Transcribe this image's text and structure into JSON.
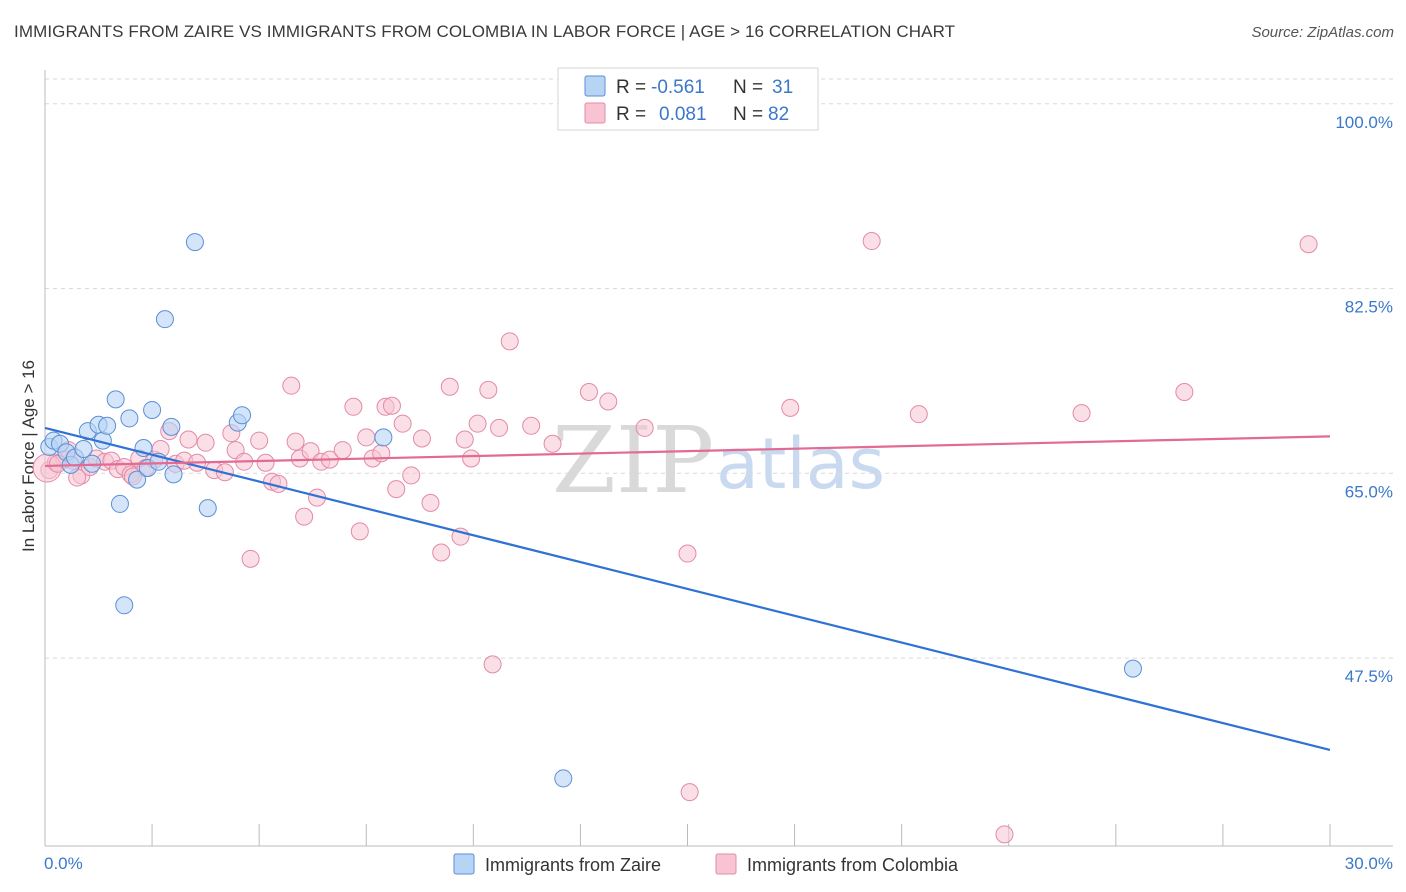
{
  "title": "IMMIGRANTS FROM ZAIRE VS IMMIGRANTS FROM COLOMBIA IN LABOR FORCE | AGE > 16 CORRELATION CHART",
  "source": "Source: ZipAtlas.com",
  "watermark": {
    "zip": "ZIP",
    "atlas": "atlas"
  },
  "colors": {
    "zaire_fill": "#b8d4f5",
    "zaire_stroke": "#5b8fd6",
    "zaire_line": "#2f72d4",
    "colombia_fill": "#f8c4d4",
    "colombia_stroke": "#e38aa8",
    "colombia_line": "#e26a93",
    "grid": "#d9d9d9",
    "axis_text": "#3b78c9"
  },
  "legend": {
    "rows": [
      {
        "r_label": "R =",
        "r_value": "-0.561",
        "n_label": "N =",
        "n_value": "31"
      },
      {
        "r_label": "R =",
        "r_value": "0.081",
        "n_label": "N =",
        "n_value": "82"
      }
    ]
  },
  "chart_data": {
    "type": "scatter",
    "title": "IMMIGRANTS FROM ZAIRE VS IMMIGRANTS FROM COLOMBIA IN LABOR FORCE | AGE > 16 CORRELATION CHART",
    "xlabel": "",
    "ylabel": "In Labor Force | Age > 16",
    "xlim": [
      0,
      30
    ],
    "ylim": [
      29.7,
      103.2
    ],
    "x_tick_labels": [
      "0.0%",
      "30.0%"
    ],
    "y_ticks": [
      47.5,
      65.0,
      82.5,
      100.0
    ],
    "y_tick_labels": [
      "47.5%",
      "65.0%",
      "82.5%",
      "100.0%"
    ],
    "series": [
      {
        "name": "Immigrants from Zaire",
        "r": -0.561,
        "n": 31,
        "trend": {
          "x": [
            0,
            30
          ],
          "y": [
            69.3,
            38.8
          ]
        },
        "points": [
          {
            "x": 0.1,
            "y": 67.5
          },
          {
            "x": 0.2,
            "y": 68.1
          },
          {
            "x": 0.35,
            "y": 67.8
          },
          {
            "x": 0.5,
            "y": 67.0
          },
          {
            "x": 0.6,
            "y": 65.8
          },
          {
            "x": 0.7,
            "y": 66.5
          },
          {
            "x": 0.9,
            "y": 67.3
          },
          {
            "x": 1.0,
            "y": 69.0
          },
          {
            "x": 1.1,
            "y": 65.9
          },
          {
            "x": 1.25,
            "y": 69.6
          },
          {
            "x": 1.35,
            "y": 68.1
          },
          {
            "x": 1.45,
            "y": 69.5
          },
          {
            "x": 1.65,
            "y": 72.0
          },
          {
            "x": 1.75,
            "y": 62.1
          },
          {
            "x": 1.85,
            "y": 52.5
          },
          {
            "x": 1.97,
            "y": 70.2
          },
          {
            "x": 2.15,
            "y": 64.4
          },
          {
            "x": 2.3,
            "y": 67.4
          },
          {
            "x": 2.4,
            "y": 65.5
          },
          {
            "x": 2.5,
            "y": 71.0
          },
          {
            "x": 2.65,
            "y": 66.1
          },
          {
            "x": 2.8,
            "y": 79.6
          },
          {
            "x": 2.95,
            "y": 69.4
          },
          {
            "x": 3.0,
            "y": 64.9
          },
          {
            "x": 3.5,
            "y": 86.9
          },
          {
            "x": 3.8,
            "y": 61.7
          },
          {
            "x": 4.5,
            "y": 69.8
          },
          {
            "x": 4.6,
            "y": 70.5
          },
          {
            "x": 7.9,
            "y": 68.4
          },
          {
            "x": 12.1,
            "y": 36.1
          },
          {
            "x": 25.4,
            "y": 46.5
          }
        ]
      },
      {
        "name": "Immigrants from Colombia",
        "r": 0.081,
        "n": 82,
        "trend": {
          "x": [
            0,
            30
          ],
          "y": [
            65.7,
            68.5
          ]
        },
        "points": [
          {
            "x": 0.1,
            "y": 65.3
          },
          {
            "x": 0.25,
            "y": 66.0
          },
          {
            "x": 0.45,
            "y": 66.3
          },
          {
            "x": 0.55,
            "y": 67.2
          },
          {
            "x": 0.65,
            "y": 66.2
          },
          {
            "x": 0.85,
            "y": 64.8
          },
          {
            "x": 1.05,
            "y": 65.6
          },
          {
            "x": 1.2,
            "y": 66.4
          },
          {
            "x": 1.4,
            "y": 66.1
          },
          {
            "x": 1.55,
            "y": 66.2
          },
          {
            "x": 1.7,
            "y": 65.4
          },
          {
            "x": 1.85,
            "y": 65.6
          },
          {
            "x": 2.0,
            "y": 64.9
          },
          {
            "x": 2.2,
            "y": 66.4
          },
          {
            "x": 2.35,
            "y": 65.5
          },
          {
            "x": 2.55,
            "y": 66.3
          },
          {
            "x": 2.7,
            "y": 67.3
          },
          {
            "x": 2.9,
            "y": 69.0
          },
          {
            "x": 3.05,
            "y": 65.9
          },
          {
            "x": 3.25,
            "y": 66.2
          },
          {
            "x": 3.35,
            "y": 68.2
          },
          {
            "x": 3.55,
            "y": 66.0
          },
          {
            "x": 3.75,
            "y": 67.9
          },
          {
            "x": 3.95,
            "y": 65.3
          },
          {
            "x": 4.2,
            "y": 65.1
          },
          {
            "x": 4.35,
            "y": 68.8
          },
          {
            "x": 4.45,
            "y": 67.2
          },
          {
            "x": 4.65,
            "y": 66.1
          },
          {
            "x": 4.8,
            "y": 56.9
          },
          {
            "x": 5.0,
            "y": 68.1
          },
          {
            "x": 5.15,
            "y": 66.0
          },
          {
            "x": 5.3,
            "y": 64.2
          },
          {
            "x": 5.45,
            "y": 64.0
          },
          {
            "x": 5.75,
            "y": 73.3
          },
          {
            "x": 5.85,
            "y": 68.0
          },
          {
            "x": 5.95,
            "y": 66.4
          },
          {
            "x": 6.05,
            "y": 60.9
          },
          {
            "x": 6.2,
            "y": 67.1
          },
          {
            "x": 6.35,
            "y": 62.7
          },
          {
            "x": 6.45,
            "y": 66.1
          },
          {
            "x": 6.65,
            "y": 66.3
          },
          {
            "x": 6.95,
            "y": 67.2
          },
          {
            "x": 7.2,
            "y": 71.3
          },
          {
            "x": 7.35,
            "y": 59.5
          },
          {
            "x": 7.5,
            "y": 68.4
          },
          {
            "x": 7.65,
            "y": 66.4
          },
          {
            "x": 7.85,
            "y": 66.9
          },
          {
            "x": 7.95,
            "y": 71.3
          },
          {
            "x": 8.1,
            "y": 71.4
          },
          {
            "x": 8.2,
            "y": 63.5
          },
          {
            "x": 8.35,
            "y": 69.7
          },
          {
            "x": 8.55,
            "y": 64.8
          },
          {
            "x": 8.8,
            "y": 68.3
          },
          {
            "x": 9.0,
            "y": 62.2
          },
          {
            "x": 9.25,
            "y": 57.5
          },
          {
            "x": 9.45,
            "y": 73.2
          },
          {
            "x": 9.7,
            "y": 59.0
          },
          {
            "x": 9.8,
            "y": 68.2
          },
          {
            "x": 9.95,
            "y": 66.4
          },
          {
            "x": 10.1,
            "y": 69.7
          },
          {
            "x": 10.35,
            "y": 72.9
          },
          {
            "x": 10.45,
            "y": 46.9
          },
          {
            "x": 10.6,
            "y": 69.3
          },
          {
            "x": 10.85,
            "y": 77.5
          },
          {
            "x": 11.35,
            "y": 69.5
          },
          {
            "x": 11.85,
            "y": 67.8
          },
          {
            "x": 12.7,
            "y": 72.7
          },
          {
            "x": 13.15,
            "y": 71.8
          },
          {
            "x": 14.0,
            "y": 69.3
          },
          {
            "x": 15.0,
            "y": 57.4
          },
          {
            "x": 15.05,
            "y": 34.8
          },
          {
            "x": 17.4,
            "y": 71.2
          },
          {
            "x": 19.3,
            "y": 87.0
          },
          {
            "x": 20.4,
            "y": 70.6
          },
          {
            "x": 22.4,
            "y": 30.8
          },
          {
            "x": 24.2,
            "y": 70.7
          },
          {
            "x": 26.6,
            "y": 72.7
          },
          {
            "x": 29.5,
            "y": 86.7
          },
          {
            "x": 0.05,
            "y": 65.5
          },
          {
            "x": 0.3,
            "y": 65.9
          },
          {
            "x": 0.75,
            "y": 64.6
          },
          {
            "x": 2.05,
            "y": 64.7
          }
        ]
      }
    ],
    "bottom_legend": [
      "Immigrants from Zaire",
      "Immigrants from Colombia"
    ],
    "legend_position": "top-center"
  }
}
